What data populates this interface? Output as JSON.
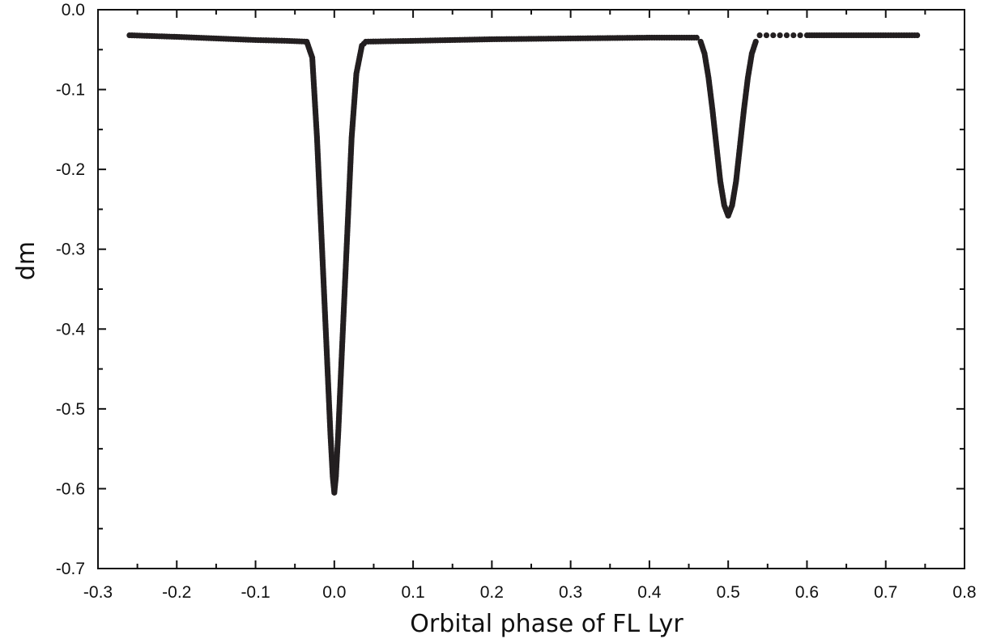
{
  "chart_data": {
    "type": "scatter",
    "title": "",
    "xlabel": "Orbital phase of FL Lyr",
    "ylabel": "dm",
    "xlim": [
      -0.3,
      0.8
    ],
    "ylim": [
      -0.7,
      0.0
    ],
    "x_ticks": [
      -0.3,
      -0.2,
      -0.1,
      0.0,
      0.1,
      0.2,
      0.3,
      0.4,
      0.5,
      0.6,
      0.7,
      0.8
    ],
    "x_tick_labels": [
      "-0.3",
      "-0.2",
      "-0.1",
      "0.0",
      "0.1",
      "0.2",
      "0.3",
      "0.4",
      "0.5",
      "0.6",
      "0.7",
      "0.8"
    ],
    "y_ticks": [
      0.0,
      -0.1,
      -0.2,
      -0.3,
      -0.4,
      -0.5,
      -0.6,
      -0.7
    ],
    "y_tick_labels": [
      "0.0",
      "-0.1",
      "-0.2",
      "-0.3",
      "-0.4",
      "-0.5",
      "-0.6",
      "-0.7"
    ],
    "grid": false,
    "legend": "none",
    "marker_color": "#231f20",
    "series": [
      {
        "x": [
          -0.26,
          -0.2,
          -0.15,
          -0.1,
          -0.06,
          -0.035,
          -0.028,
          -0.022,
          -0.016,
          -0.01,
          -0.005,
          -0.002,
          0.0,
          0.002,
          0.005,
          0.01,
          0.016,
          0.022,
          0.028,
          0.035,
          0.04,
          0.1,
          0.2,
          0.3,
          0.4,
          0.46,
          0.465,
          0.47,
          0.475,
          0.48,
          0.485,
          0.49,
          0.495,
          0.5,
          0.505,
          0.51,
          0.515,
          0.52,
          0.525,
          0.53,
          0.535,
          0.54,
          0.6,
          0.7,
          0.74
        ],
        "y": [
          -0.032,
          -0.034,
          -0.036,
          -0.038,
          -0.039,
          -0.04,
          -0.06,
          -0.16,
          -0.29,
          -0.42,
          -0.53,
          -0.585,
          -0.605,
          -0.585,
          -0.53,
          -0.42,
          -0.29,
          -0.16,
          -0.08,
          -0.045,
          -0.04,
          -0.039,
          -0.037,
          -0.036,
          -0.035,
          -0.035,
          -0.04,
          -0.055,
          -0.085,
          -0.125,
          -0.17,
          -0.215,
          -0.245,
          -0.258,
          -0.245,
          -0.215,
          -0.17,
          -0.125,
          -0.085,
          -0.055,
          -0.04,
          -0.032,
          -0.032,
          -0.032,
          -0.032
        ]
      }
    ]
  }
}
